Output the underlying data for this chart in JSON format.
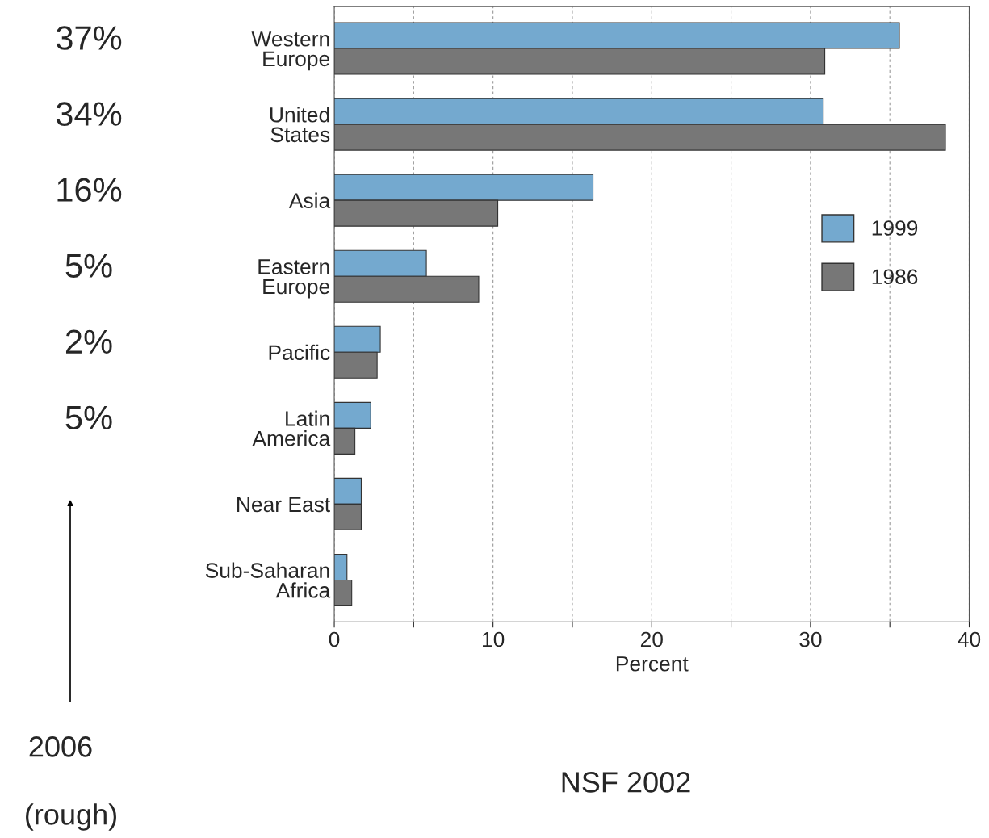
{
  "chart_data": {
    "type": "bar",
    "orientation": "horizontal",
    "xlabel": "Percent",
    "categories": [
      "Western\nEurope",
      "United\nStates",
      "Asia",
      "Eastern\nEurope",
      "Pacific",
      "Latin\nAmerica",
      "Near East",
      "Sub-Saharan\nAfrica"
    ],
    "series": [
      {
        "name": "1999",
        "color": "#74a9cf",
        "values": [
          35.6,
          30.8,
          16.3,
          5.8,
          2.9,
          2.3,
          1.7,
          0.8
        ]
      },
      {
        "name": "1986",
        "color": "#777777",
        "values": [
          30.9,
          38.5,
          10.3,
          9.1,
          2.7,
          1.3,
          1.7,
          1.1
        ]
      }
    ],
    "xlim": [
      0,
      40
    ],
    "xticks": [
      0,
      {
        "value": 5,
        "label": null
      },
      10,
      {
        "value": 15,
        "label": null
      },
      20,
      {
        "value": 25,
        "label": null
      },
      30,
      {
        "value": 35,
        "label": null
      },
      40
    ],
    "grid": "x",
    "legend": "right",
    "annotations": [
      "37%",
      "34%",
      "16%",
      "5%",
      "2%",
      "5%",
      "2006",
      "(rough)",
      "NSF 2002"
    ]
  }
}
